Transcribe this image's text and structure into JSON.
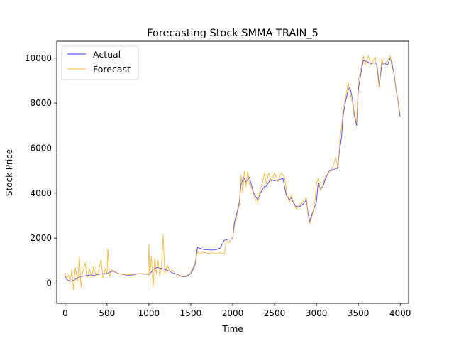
{
  "chart_data": {
    "type": "line",
    "title": "Forecasting Stock SMMA TRAIN_5",
    "xlabel": "Time",
    "ylabel": "Stock Price",
    "xlim": [
      -100,
      4100
    ],
    "ylim": [
      -900,
      10750
    ],
    "xticks": [
      0,
      500,
      1000,
      1500,
      2000,
      2500,
      3000,
      3500,
      4000
    ],
    "yticks": [
      0,
      2000,
      4000,
      6000,
      8000,
      10000
    ],
    "grid": false,
    "legend": "upper-left",
    "series": [
      {
        "name": "Actual",
        "color": "#0000ff",
        "points": [
          [
            0,
            300
          ],
          [
            20,
            160
          ],
          [
            60,
            80
          ],
          [
            100,
            130
          ],
          [
            150,
            230
          ],
          [
            200,
            300
          ],
          [
            250,
            330
          ],
          [
            300,
            360
          ],
          [
            350,
            340
          ],
          [
            400,
            390
          ],
          [
            450,
            420
          ],
          [
            500,
            430
          ],
          [
            550,
            510
          ],
          [
            580,
            540
          ],
          [
            600,
            480
          ],
          [
            650,
            410
          ],
          [
            700,
            380
          ],
          [
            750,
            350
          ],
          [
            800,
            360
          ],
          [
            850,
            400
          ],
          [
            900,
            420
          ],
          [
            950,
            400
          ],
          [
            1000,
            390
          ],
          [
            1020,
            450
          ],
          [
            1050,
            620
          ],
          [
            1100,
            700
          ],
          [
            1150,
            650
          ],
          [
            1200,
            600
          ],
          [
            1250,
            520
          ],
          [
            1300,
            420
          ],
          [
            1350,
            380
          ],
          [
            1400,
            280
          ],
          [
            1450,
            300
          ],
          [
            1500,
            420
          ],
          [
            1550,
            800
          ],
          [
            1580,
            1600
          ],
          [
            1600,
            1560
          ],
          [
            1650,
            1500
          ],
          [
            1700,
            1480
          ],
          [
            1750,
            1470
          ],
          [
            1800,
            1480
          ],
          [
            1850,
            1560
          ],
          [
            1900,
            1900
          ],
          [
            1950,
            1950
          ],
          [
            2000,
            1980
          ],
          [
            2020,
            2700
          ],
          [
            2050,
            3100
          ],
          [
            2080,
            3600
          ],
          [
            2100,
            4400
          ],
          [
            2130,
            4700
          ],
          [
            2160,
            4500
          ],
          [
            2200,
            4700
          ],
          [
            2250,
            4000
          ],
          [
            2300,
            3700
          ],
          [
            2330,
            4000
          ],
          [
            2380,
            4300
          ],
          [
            2400,
            4300
          ],
          [
            2450,
            4600
          ],
          [
            2500,
            4550
          ],
          [
            2550,
            4600
          ],
          [
            2600,
            4650
          ],
          [
            2640,
            3900
          ],
          [
            2680,
            3700
          ],
          [
            2700,
            3800
          ],
          [
            2720,
            3600
          ],
          [
            2760,
            3400
          ],
          [
            2800,
            3400
          ],
          [
            2850,
            3550
          ],
          [
            2880,
            3700
          ],
          [
            2900,
            3100
          ],
          [
            2920,
            2750
          ],
          [
            2950,
            3100
          ],
          [
            3000,
            3600
          ],
          [
            3020,
            4450
          ],
          [
            3050,
            4200
          ],
          [
            3080,
            4300
          ],
          [
            3100,
            4550
          ],
          [
            3150,
            5000
          ],
          [
            3200,
            5050
          ],
          [
            3250,
            5100
          ],
          [
            3280,
            6000
          ],
          [
            3300,
            6500
          ],
          [
            3320,
            7500
          ],
          [
            3350,
            8100
          ],
          [
            3380,
            8600
          ],
          [
            3400,
            8700
          ],
          [
            3430,
            8200
          ],
          [
            3450,
            7500
          ],
          [
            3480,
            7000
          ],
          [
            3500,
            8600
          ],
          [
            3530,
            9300
          ],
          [
            3560,
            9900
          ],
          [
            3600,
            9850
          ],
          [
            3650,
            9750
          ],
          [
            3700,
            9800
          ],
          [
            3720,
            9750
          ],
          [
            3750,
            8800
          ],
          [
            3780,
            9700
          ],
          [
            3800,
            9800
          ],
          [
            3850,
            9700
          ],
          [
            3880,
            10000
          ],
          [
            3900,
            9800
          ],
          [
            3930,
            9200
          ],
          [
            3950,
            8600
          ],
          [
            3970,
            8200
          ],
          [
            3990,
            7600
          ],
          [
            4000,
            7400
          ]
        ]
      },
      {
        "name": "Forecast",
        "color": "#ffa500",
        "points": [
          [
            0,
            450
          ],
          [
            15,
            200
          ],
          [
            40,
            350
          ],
          [
            60,
            50
          ],
          [
            80,
            600
          ],
          [
            100,
            -300
          ],
          [
            120,
            700
          ],
          [
            150,
            100
          ],
          [
            170,
            1200
          ],
          [
            190,
            -200
          ],
          [
            210,
            500
          ],
          [
            240,
            900
          ],
          [
            260,
            200
          ],
          [
            290,
            650
          ],
          [
            320,
            250
          ],
          [
            340,
            750
          ],
          [
            370,
            300
          ],
          [
            400,
            550
          ],
          [
            430,
            1050
          ],
          [
            450,
            200
          ],
          [
            480,
            650
          ],
          [
            500,
            400
          ],
          [
            510,
            1550
          ],
          [
            530,
            300
          ],
          [
            560,
            600
          ],
          [
            580,
            550
          ],
          [
            620,
            450
          ],
          [
            660,
            400
          ],
          [
            700,
            380
          ],
          [
            740,
            370
          ],
          [
            800,
            380
          ],
          [
            850,
            420
          ],
          [
            900,
            430
          ],
          [
            950,
            410
          ],
          [
            990,
            420
          ],
          [
            1000,
            1700
          ],
          [
            1010,
            300
          ],
          [
            1030,
            1200
          ],
          [
            1050,
            -200
          ],
          [
            1070,
            1100
          ],
          [
            1090,
            400
          ],
          [
            1110,
            1000
          ],
          [
            1130,
            300
          ],
          [
            1150,
            700
          ],
          [
            1170,
            2150
          ],
          [
            1190,
            400
          ],
          [
            1220,
            800
          ],
          [
            1250,
            500
          ],
          [
            1280,
            600
          ],
          [
            1320,
            400
          ],
          [
            1360,
            350
          ],
          [
            1400,
            300
          ],
          [
            1450,
            320
          ],
          [
            1500,
            500
          ],
          [
            1550,
            900
          ],
          [
            1580,
            1400
          ],
          [
            1600,
            1300
          ],
          [
            1650,
            1380
          ],
          [
            1700,
            1320
          ],
          [
            1750,
            1350
          ],
          [
            1800,
            1300
          ],
          [
            1850,
            1350
          ],
          [
            1900,
            1300
          ],
          [
            1920,
            1900
          ],
          [
            1950,
            1800
          ],
          [
            2000,
            2000
          ],
          [
            2020,
            2500
          ],
          [
            2050,
            3000
          ],
          [
            2080,
            3500
          ],
          [
            2100,
            4800
          ],
          [
            2120,
            4000
          ],
          [
            2140,
            5000
          ],
          [
            2160,
            4300
          ],
          [
            2180,
            5000
          ],
          [
            2200,
            4400
          ],
          [
            2230,
            4200
          ],
          [
            2260,
            3800
          ],
          [
            2300,
            3600
          ],
          [
            2330,
            4200
          ],
          [
            2360,
            4500
          ],
          [
            2380,
            4900
          ],
          [
            2400,
            4400
          ],
          [
            2430,
            4900
          ],
          [
            2460,
            4500
          ],
          [
            2500,
            4900
          ],
          [
            2540,
            4500
          ],
          [
            2580,
            4900
          ],
          [
            2620,
            4700
          ],
          [
            2650,
            3900
          ],
          [
            2680,
            3600
          ],
          [
            2700,
            3900
          ],
          [
            2730,
            3500
          ],
          [
            2760,
            3300
          ],
          [
            2800,
            3500
          ],
          [
            2840,
            3600
          ],
          [
            2880,
            3800
          ],
          [
            2900,
            3000
          ],
          [
            2920,
            2650
          ],
          [
            2950,
            3000
          ],
          [
            2980,
            3600
          ],
          [
            3000,
            4400
          ],
          [
            3020,
            4650
          ],
          [
            3050,
            4100
          ],
          [
            3080,
            4400
          ],
          [
            3100,
            4700
          ],
          [
            3150,
            4900
          ],
          [
            3200,
            5200
          ],
          [
            3230,
            5600
          ],
          [
            3260,
            5100
          ],
          [
            3280,
            6500
          ],
          [
            3300,
            6900
          ],
          [
            3320,
            7800
          ],
          [
            3350,
            8300
          ],
          [
            3380,
            8900
          ],
          [
            3400,
            8500
          ],
          [
            3430,
            8000
          ],
          [
            3450,
            7600
          ],
          [
            3480,
            7100
          ],
          [
            3500,
            9000
          ],
          [
            3530,
            9500
          ],
          [
            3560,
            10100
          ],
          [
            3580,
            9700
          ],
          [
            3620,
            10100
          ],
          [
            3650,
            9700
          ],
          [
            3700,
            10050
          ],
          [
            3720,
            9600
          ],
          [
            3750,
            8700
          ],
          [
            3780,
            10000
          ],
          [
            3800,
            9700
          ],
          [
            3850,
            9900
          ],
          [
            3880,
            10100
          ],
          [
            3900,
            9600
          ],
          [
            3930,
            9300
          ],
          [
            3950,
            8600
          ],
          [
            3970,
            8200
          ],
          [
            3990,
            7700
          ],
          [
            4000,
            7500
          ]
        ]
      }
    ]
  }
}
